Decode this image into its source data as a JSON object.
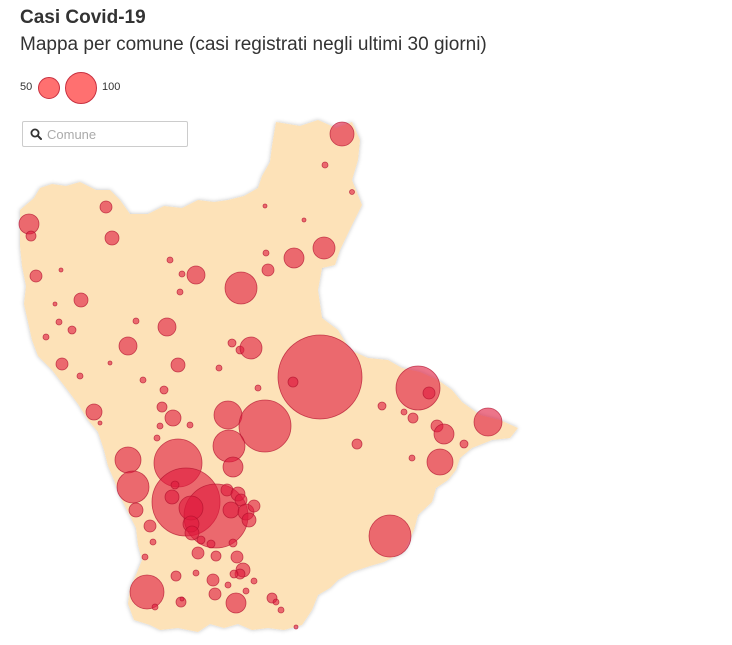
{
  "title": "Casi Covid-19",
  "subtitle": "Mappa per comune (casi registrati negli ultimi 30 giorni)",
  "legend": {
    "small_label": "50",
    "large_label": "100",
    "small_value": 50,
    "large_value": 100
  },
  "search": {
    "placeholder": "Comune",
    "value": ""
  },
  "colors": {
    "region_fill": "#fde2b8",
    "bubble_fill": "#e0193c",
    "legend_fill": "#ff7070"
  },
  "icons": {
    "search": "search-icon"
  }
}
